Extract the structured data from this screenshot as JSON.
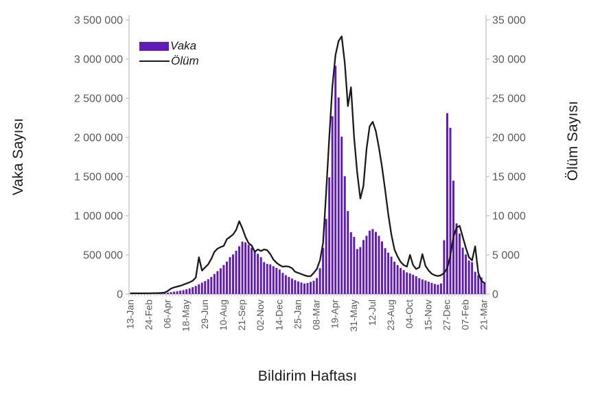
{
  "chart_data": {
    "type": "bar",
    "subtype": "combo-bar-line-dual-axis",
    "title": "",
    "x_axis": {
      "title": "Bildirim Haftası",
      "n_points": 115,
      "label_every": 6,
      "tick_labels": [
        "13-Jan",
        "24-Feb",
        "06-Apr",
        "18-May",
        "29-Jun",
        "10-Aug",
        "21-Sep",
        "02-Nov",
        "14-Dec",
        "25-Jan",
        "08-Mar",
        "19-Apr",
        "31-May",
        "12-Jul",
        "23-Aug",
        "04-Oct",
        "15-Nov",
        "27-Dec",
        "07-Feb",
        "21-Mar"
      ]
    },
    "y_left_axis": {
      "title": "Vaka Sayısı",
      "min": 0,
      "max": 3500000,
      "tick_step": 500000,
      "tick_labels": [
        "0",
        "500 000",
        "1 000 000",
        "1 500 000",
        "2 000 000",
        "2 500 000",
        "3 000 000",
        "3 500 000"
      ]
    },
    "y_right_axis": {
      "title": "Ölüm Sayısı",
      "min": 0,
      "max": 35000,
      "tick_step": 5000,
      "tick_labels": [
        "0",
        "5 000",
        "10 000",
        "15 000",
        "20 000",
        "25 000",
        "30 000",
        "35 000"
      ]
    },
    "legend": [
      {
        "label": "Vaka",
        "type": "bar"
      },
      {
        "label": "Ölüm",
        "type": "line"
      }
    ],
    "grid": "off",
    "legend_position": "inside-top-left",
    "series": [
      {
        "name": "Vaka",
        "type": "bar",
        "axis": "left",
        "values": [
          0,
          0,
          0,
          0,
          0,
          0,
          0,
          0,
          2000,
          4000,
          7000,
          12000,
          18000,
          25000,
          31000,
          37000,
          43000,
          50000,
          60000,
          73000,
          88000,
          103000,
          125000,
          146000,
          166000,
          190000,
          218000,
          256000,
          293000,
          328000,
          371000,
          414000,
          471000,
          506000,
          552000,
          610000,
          670000,
          660000,
          629000,
          592000,
          558000,
          514000,
          471000,
          408000,
          385000,
          379000,
          356000,
          333000,
          313000,
          270000,
          241000,
          218000,
          198000,
          178000,
          161000,
          147000,
          135000,
          141000,
          155000,
          170000,
          204000,
          330000,
          590000,
          960000,
          1490000,
          2270000,
          2915000,
          2510000,
          2010000,
          1505000,
          1060000,
          790000,
          730000,
          575000,
          600000,
          690000,
          744000,
          810000,
          830000,
          793000,
          744000,
          672000,
          586000,
          529000,
          477000,
          414000,
          371000,
          333000,
          305000,
          276000,
          264000,
          247000,
          227000,
          202000,
          187000,
          173000,
          158000,
          143000,
          129000,
          120000,
          135000,
          687000,
          2310000,
          2123000,
          1448000,
          902000,
          773000,
          592000,
          506000,
          428000,
          408000,
          284000,
          241000,
          213000,
          150000
        ]
      },
      {
        "name": "Ölüm",
        "type": "line",
        "axis": "right",
        "values": [
          100,
          100,
          100,
          100,
          100,
          100,
          100,
          110,
          120,
          130,
          150,
          200,
          400,
          700,
          850,
          950,
          1050,
          1200,
          1350,
          1500,
          1700,
          2100,
          4700,
          3000,
          3400,
          3800,
          4500,
          5400,
          5800,
          6000,
          6150,
          7000,
          7300,
          7600,
          8200,
          9300,
          8400,
          7300,
          6500,
          6200,
          5400,
          5700,
          5500,
          5700,
          5600,
          5100,
          4400,
          4000,
          3700,
          3500,
          3550,
          3500,
          3300,
          2850,
          2700,
          2550,
          2400,
          2280,
          2280,
          2700,
          3200,
          4300,
          6500,
          13000,
          20000,
          26500,
          30500,
          32300,
          32900,
          29500,
          24000,
          26400,
          20000,
          15500,
          12200,
          13800,
          18500,
          21400,
          22000,
          20800,
          18700,
          16200,
          13300,
          10200,
          7600,
          5700,
          4800,
          4100,
          3700,
          3500,
          5000,
          3700,
          3200,
          3400,
          5100,
          3600,
          3000,
          2600,
          2400,
          2300,
          2400,
          2700,
          3300,
          4900,
          7300,
          8500,
          8700,
          7300,
          5900,
          4700,
          4300,
          6100,
          2700,
          1700,
          1400
        ]
      }
    ],
    "colors": {
      "bar": "#601CB4",
      "line": "#1a1a1a",
      "axis_line": "#BFBFBF",
      "tick_text": "#595959",
      "background": "#ffffff"
    }
  }
}
